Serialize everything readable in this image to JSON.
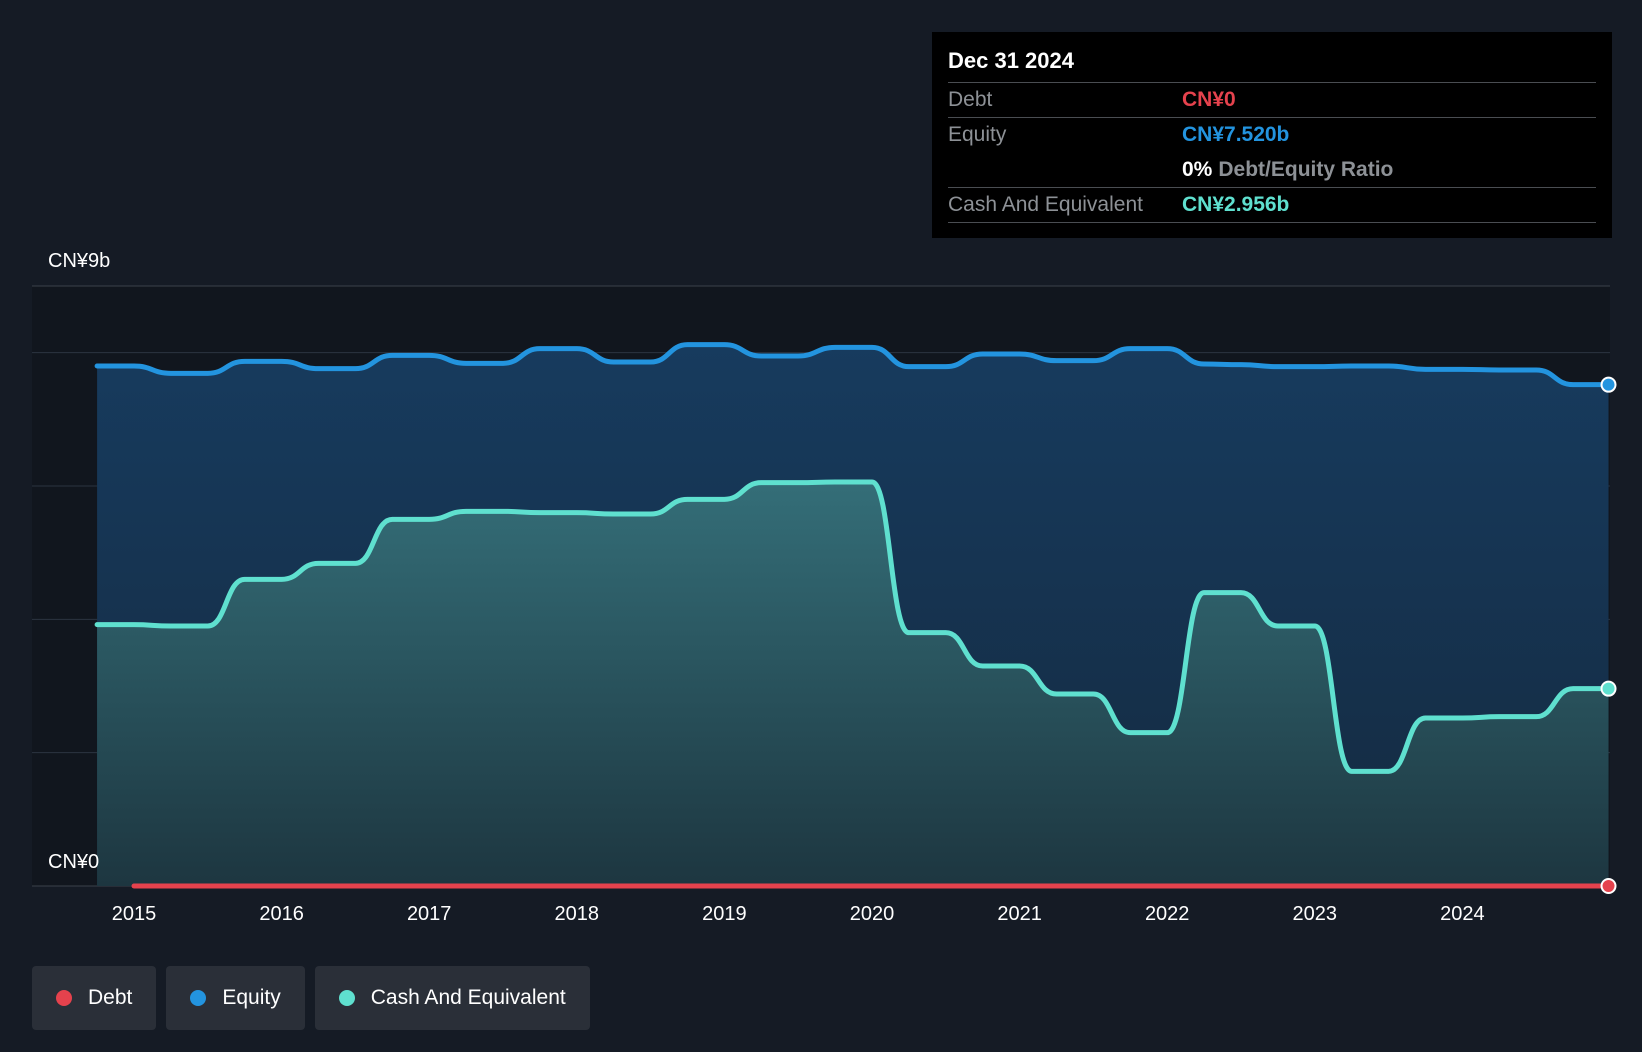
{
  "chart_data": {
    "type": "area",
    "y_axis": {
      "top_label": "CN¥9b",
      "bottom_label": "CN¥0",
      "ylim": [
        0,
        9
      ]
    },
    "x_ticks": [
      "2015",
      "2016",
      "2017",
      "2018",
      "2019",
      "2020",
      "2021",
      "2022",
      "2023",
      "2024"
    ],
    "grid": true,
    "legend_position": "bottom-left",
    "series": [
      {
        "name": "Debt",
        "key": "debt",
        "color": "#e5424d",
        "x": [
          2015.0,
          2024.99
        ],
        "values": [
          0,
          0
        ]
      },
      {
        "name": "Equity",
        "key": "equity",
        "color": "#2394df",
        "x": [
          2014.75,
          2015.0,
          2015.25,
          2015.5,
          2015.75,
          2016.0,
          2016.25,
          2016.5,
          2016.75,
          2017.0,
          2017.25,
          2017.5,
          2017.75,
          2018.0,
          2018.25,
          2018.5,
          2018.75,
          2019.0,
          2019.25,
          2019.5,
          2019.75,
          2020.0,
          2020.25,
          2020.5,
          2020.75,
          2021.0,
          2021.25,
          2021.5,
          2021.75,
          2022.0,
          2022.25,
          2022.5,
          2022.75,
          2023.0,
          2023.25,
          2023.5,
          2023.75,
          2024.0,
          2024.25,
          2024.5,
          2024.75,
          2024.99
        ],
        "values": [
          7.8,
          7.8,
          7.69,
          7.69,
          7.87,
          7.87,
          7.76,
          7.76,
          7.96,
          7.96,
          7.84,
          7.84,
          8.06,
          8.06,
          7.86,
          7.86,
          8.12,
          8.12,
          7.95,
          7.95,
          8.08,
          8.08,
          7.79,
          7.79,
          7.98,
          7.98,
          7.88,
          7.88,
          8.06,
          8.06,
          7.83,
          7.82,
          7.79,
          7.79,
          7.8,
          7.8,
          7.75,
          7.75,
          7.74,
          7.74,
          7.52,
          7.52
        ]
      },
      {
        "name": "Cash And Equivalent",
        "key": "cash",
        "color": "#5fe0cf",
        "x": [
          2014.75,
          2015.0,
          2015.25,
          2015.5,
          2015.75,
          2016.0,
          2016.25,
          2016.5,
          2016.75,
          2017.0,
          2017.25,
          2017.5,
          2017.75,
          2018.0,
          2018.25,
          2018.5,
          2018.75,
          2019.0,
          2019.25,
          2019.5,
          2019.75,
          2020.0,
          2020.25,
          2020.5,
          2020.75,
          2021.0,
          2021.25,
          2021.5,
          2021.75,
          2022.0,
          2022.25,
          2022.5,
          2022.75,
          2023.0,
          2023.25,
          2023.5,
          2023.75,
          2024.0,
          2024.25,
          2024.5,
          2024.75,
          2024.99
        ],
        "values": [
          3.92,
          3.92,
          3.9,
          3.9,
          4.6,
          4.6,
          4.84,
          4.84,
          5.5,
          5.5,
          5.62,
          5.62,
          5.6,
          5.6,
          5.58,
          5.58,
          5.8,
          5.8,
          6.05,
          6.05,
          6.06,
          6.06,
          3.8,
          3.8,
          3.3,
          3.3,
          2.88,
          2.88,
          2.3,
          2.3,
          4.4,
          4.4,
          3.9,
          3.9,
          1.72,
          1.72,
          2.52,
          2.52,
          2.54,
          2.54,
          2.96,
          2.96
        ]
      }
    ]
  },
  "tooltip": {
    "date": "Dec 31 2024",
    "rows": [
      {
        "label": "Debt",
        "value": "CN¥0",
        "color": "#e5424d"
      },
      {
        "label": "Equity",
        "value": "CN¥7.520b",
        "color": "#2394df"
      },
      {
        "label": "",
        "value": "0%",
        "suffix": "Debt/Equity Ratio",
        "color": "#ffffff"
      },
      {
        "label": "Cash And Equivalent",
        "value": "CN¥2.956b",
        "color": "#5fe0cf"
      }
    ]
  },
  "legend": [
    {
      "label": "Debt",
      "color": "#e5424d"
    },
    {
      "label": "Equity",
      "color": "#2394df"
    },
    {
      "label": "Cash And Equivalent",
      "color": "#5fe0cf"
    }
  ]
}
